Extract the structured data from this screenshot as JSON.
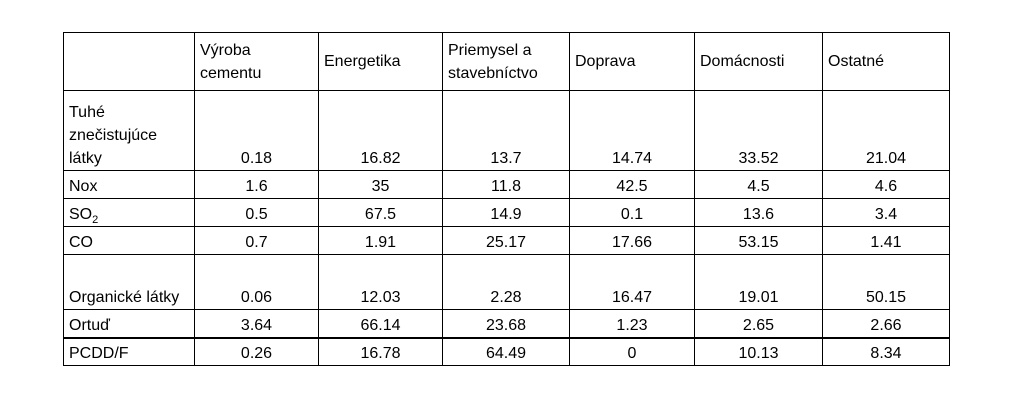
{
  "table": {
    "columns": [
      "Výroba cementu",
      "Energetika",
      "Priemysel a stavebníctvo",
      "Doprava",
      "Domácnosti",
      "Ostatné"
    ],
    "rows": [
      {
        "label": "Tuhé znečistujúce látky",
        "values": [
          "0.18",
          "16.82",
          "13.7",
          "14.74",
          "33.52",
          "21.04"
        ]
      },
      {
        "label": "Nox",
        "values": [
          "1.6",
          "35",
          "11.8",
          "42.5",
          "4.5",
          "4.6"
        ]
      },
      {
        "label_main": "SO",
        "label_sub": "2",
        "values": [
          "0.5",
          "67.5",
          "14.9",
          "0.1",
          "13.6",
          "3.4"
        ]
      },
      {
        "label": "CO",
        "values": [
          "0.7",
          "1.91",
          "25.17",
          "17.66",
          "53.15",
          "1.41"
        ]
      },
      {
        "label": "Organické látky",
        "values": [
          "0.06",
          "12.03",
          "2.28",
          "16.47",
          "19.01",
          "50.15"
        ]
      },
      {
        "label": "Ortuď",
        "values": [
          "3.64",
          "66.14",
          "23.68",
          "1.23",
          "2.65",
          "2.66"
        ]
      },
      {
        "label": "PCDD/F",
        "values": [
          "0.26",
          "16.78",
          "64.49",
          "0",
          "10.13",
          "8.34"
        ]
      }
    ]
  }
}
